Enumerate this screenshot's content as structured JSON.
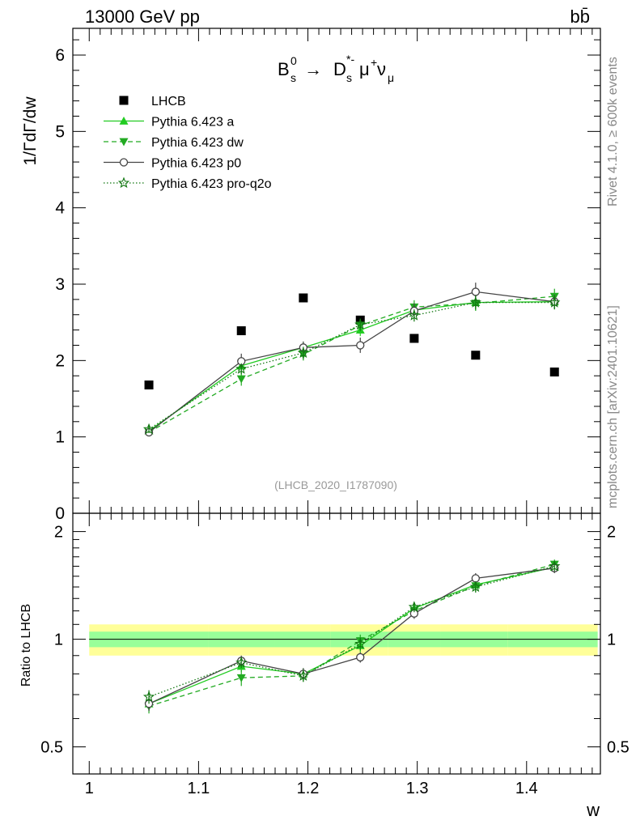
{
  "header": {
    "energy": "13000 GeV pp",
    "process": "bb̄"
  },
  "side": {
    "rivet": "Rivet 4.1.0, ≥ 600k events",
    "source": "mcplots.cern.ch [arXiv:2401.10621]"
  },
  "chart_data": [
    {
      "type": "scatter",
      "panel": "main",
      "title": "B_s^0 → D_s^*- μ+ ν_μ",
      "title_parts": {
        "B": "B",
        "B_sup": "0",
        "B_sub": "s",
        "arrow": " → ",
        "D": "D",
        "D_sup": "*-",
        "D_sub": "s",
        "mu": "μ",
        "mu_sup": "+",
        "nu": "ν",
        "nu_sub": "μ"
      },
      "analysis": "(LHCB_2020_I1787090)",
      "ylabel": "1/ΓdΓ/dw",
      "xlim": [
        0.985,
        1.4675
      ],
      "ylim": [
        0,
        6.35
      ],
      "yticks": [
        0,
        1,
        2,
        3,
        4,
        5,
        6
      ],
      "x": [
        1.0546,
        1.1391,
        1.1958,
        1.2479,
        1.2972,
        1.3534,
        1.4255
      ],
      "series": [
        {
          "name": "LHCB",
          "marker": "square",
          "color": "#000000",
          "values": [
            1.68,
            2.39,
            2.82,
            2.53,
            2.29,
            2.07,
            1.85
          ]
        },
        {
          "name": "Pythia 6.423 a",
          "marker": "triangle-up",
          "line": "solid",
          "color": "#22cc22",
          "values": [
            1.08,
            1.93,
            2.17,
            2.4,
            2.66,
            2.76,
            2.77
          ],
          "errors": [
            0.05,
            0.06,
            0.07,
            0.08,
            0.09,
            0.1,
            0.1
          ]
        },
        {
          "name": "Pythia 6.423 dw",
          "marker": "triangle-down",
          "line": "dashed",
          "color": "#22aa22",
          "values": [
            1.06,
            1.76,
            2.08,
            2.46,
            2.7,
            2.75,
            2.84
          ],
          "errors": [
            0.05,
            0.09,
            0.08,
            0.08,
            0.09,
            0.1,
            0.1
          ]
        },
        {
          "name": "Pythia 6.423 p0",
          "marker": "open-circle",
          "line": "solid",
          "color": "#444444",
          "values": [
            1.06,
            1.99,
            2.17,
            2.2,
            2.65,
            2.9,
            2.77
          ],
          "errors": [
            0.05,
            0.1,
            0.08,
            0.1,
            0.1,
            0.12,
            0.09
          ]
        },
        {
          "name": "Pythia 6.423 pro-q2o",
          "marker": "open-star",
          "line": "dotted",
          "color": "#117711",
          "values": [
            1.1,
            1.89,
            2.1,
            2.47,
            2.59,
            2.76,
            2.76
          ],
          "errors": [
            0.05,
            0.07,
            0.08,
            0.08,
            0.08,
            0.09,
            0.09
          ]
        }
      ]
    },
    {
      "type": "scatter",
      "panel": "ratio",
      "ylabel": "Ratio to LHCB",
      "xlabel": "w",
      "ylim": [
        0.42,
        2.25
      ],
      "yscale": "log",
      "yticks": [
        0.5,
        1,
        2
      ],
      "xticks": [
        1,
        1.1,
        1.2,
        1.3,
        1.4
      ],
      "x": [
        1.0546,
        1.1391,
        1.1958,
        1.2479,
        1.2972,
        1.3534,
        1.4255
      ],
      "bin_edges": [
        1.0,
        1.109,
        1.17,
        1.221,
        1.273,
        1.321,
        1.383,
        1.465
      ],
      "band_green": [
        0.05,
        0.05,
        0.05,
        0.05,
        0.05,
        0.05,
        0.05
      ],
      "band_yellow": [
        0.1,
        0.1,
        0.1,
        0.1,
        0.1,
        0.1,
        0.1
      ],
      "series": [
        {
          "name": "Pythia 6.423 a",
          "values": [
            0.66,
            0.84,
            0.8,
            0.96,
            1.22,
            1.42,
            1.59
          ],
          "errors": [
            0.03,
            0.03,
            0.03,
            0.04,
            0.04,
            0.05,
            0.05
          ]
        },
        {
          "name": "Pythia 6.423 dw",
          "values": [
            0.65,
            0.78,
            0.79,
            0.99,
            1.2,
            1.41,
            1.62
          ],
          "errors": [
            0.03,
            0.04,
            0.03,
            0.04,
            0.04,
            0.05,
            0.05
          ]
        },
        {
          "name": "Pythia 6.423 p0",
          "values": [
            0.66,
            0.87,
            0.8,
            0.89,
            1.18,
            1.48,
            1.58
          ],
          "errors": [
            0.03,
            0.03,
            0.03,
            0.03,
            0.04,
            0.05,
            0.05
          ]
        },
        {
          "name": "Pythia 6.423 pro-q2o",
          "values": [
            0.69,
            0.86,
            0.79,
            0.97,
            1.23,
            1.4,
            1.6
          ],
          "errors": [
            0.03,
            0.03,
            0.03,
            0.04,
            0.04,
            0.05,
            0.05
          ]
        }
      ]
    }
  ]
}
